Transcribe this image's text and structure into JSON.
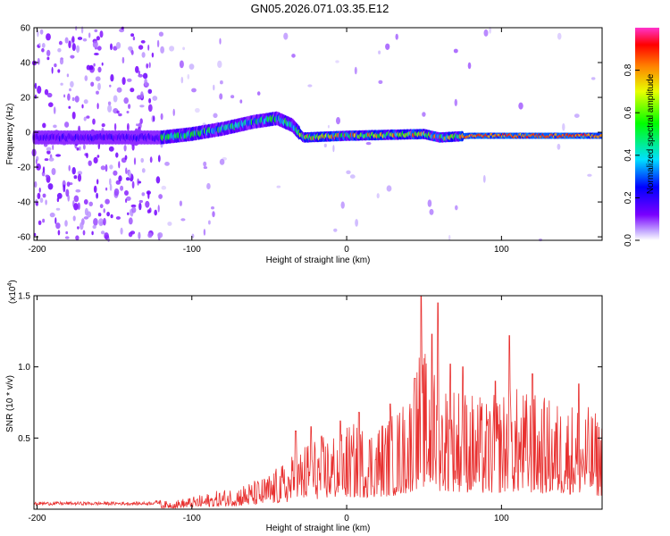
{
  "title": "GN05.2026.071.03.35.E12",
  "chart_data": [
    {
      "type": "heatmap",
      "name": "spectrogram",
      "xlabel": "Height of straight line (km)",
      "ylabel": "Frequency (Hz)",
      "xlim": [
        -202,
        165
      ],
      "ylim": [
        -62,
        60
      ],
      "xticks": [
        -200,
        -100,
        0,
        100
      ],
      "yticks": [
        60,
        40,
        20,
        0,
        -20,
        -40,
        -60
      ],
      "colorbar": {
        "label": "Normalized spectral amplitude",
        "range": [
          0,
          1
        ],
        "ticks": [
          0.0,
          0.2,
          0.4,
          0.6,
          0.8
        ],
        "tick_labels": [
          "0.0",
          "0.2",
          "0.4",
          "0.6",
          "0.8"
        ]
      },
      "ridge": [
        {
          "x": -200,
          "y": -3
        },
        {
          "x": -150,
          "y": -3
        },
        {
          "x": -120,
          "y": -3
        },
        {
          "x": -100,
          "y": -1
        },
        {
          "x": -80,
          "y": 2
        },
        {
          "x": -60,
          "y": 6
        },
        {
          "x": -45,
          "y": 8
        },
        {
          "x": -35,
          "y": 4
        },
        {
          "x": -28,
          "y": -3
        },
        {
          "x": 0,
          "y": -2
        },
        {
          "x": 50,
          "y": -1
        },
        {
          "x": 60,
          "y": -3
        },
        {
          "x": 80,
          "y": -2
        },
        {
          "x": 165,
          "y": -2
        }
      ]
    },
    {
      "type": "line",
      "name": "snr",
      "xlabel": "Height of straight line (km)",
      "ylabel": "SNR (10 * v/v)",
      "scale_label": "(x10",
      "scale_exp": "4",
      "scale_close": ")",
      "xlim": [
        -202,
        165
      ],
      "ylim": [
        0,
        1.5
      ],
      "xticks": [
        -200,
        -100,
        0,
        100
      ],
      "yticks": [
        0.5,
        1.0,
        1.5
      ],
      "ytick_labels": [
        "0.5",
        "1.0",
        "1.5"
      ],
      "color": "#e8302f",
      "envelope": [
        {
          "x": -202,
          "y": 0.04
        },
        {
          "x": -130,
          "y": 0.04
        },
        {
          "x": -110,
          "y": 0.06
        },
        {
          "x": -95,
          "y": 0.09
        },
        {
          "x": -75,
          "y": 0.14
        },
        {
          "x": -55,
          "y": 0.2
        },
        {
          "x": -40,
          "y": 0.3
        },
        {
          "x": -25,
          "y": 0.45
        },
        {
          "x": -10,
          "y": 0.5
        },
        {
          "x": 0,
          "y": 0.55
        },
        {
          "x": 15,
          "y": 0.55
        },
        {
          "x": 30,
          "y": 0.62
        },
        {
          "x": 40,
          "y": 0.75
        },
        {
          "x": 48,
          "y": 1.05
        },
        {
          "x": 60,
          "y": 0.85
        },
        {
          "x": 75,
          "y": 0.8
        },
        {
          "x": 90,
          "y": 0.7
        },
        {
          "x": 105,
          "y": 0.8
        },
        {
          "x": 120,
          "y": 0.75
        },
        {
          "x": 135,
          "y": 0.7
        },
        {
          "x": 150,
          "y": 0.7
        },
        {
          "x": 165,
          "y": 0.6
        }
      ],
      "peaks": [
        {
          "x": -33,
          "y": 0.55
        },
        {
          "x": -23,
          "y": 0.58
        },
        {
          "x": -4,
          "y": 0.62
        },
        {
          "x": 8,
          "y": 0.68
        },
        {
          "x": 28,
          "y": 0.74
        },
        {
          "x": 44,
          "y": 0.92
        },
        {
          "x": 48,
          "y": 1.5
        },
        {
          "x": 55,
          "y": 1.23
        },
        {
          "x": 59,
          "y": 1.45
        },
        {
          "x": 67,
          "y": 1.02
        },
        {
          "x": 75,
          "y": 1.0
        },
        {
          "x": 96,
          "y": 0.9
        },
        {
          "x": 105,
          "y": 1.22
        },
        {
          "x": 120,
          "y": 0.95
        },
        {
          "x": 150,
          "y": 0.88
        }
      ]
    }
  ]
}
